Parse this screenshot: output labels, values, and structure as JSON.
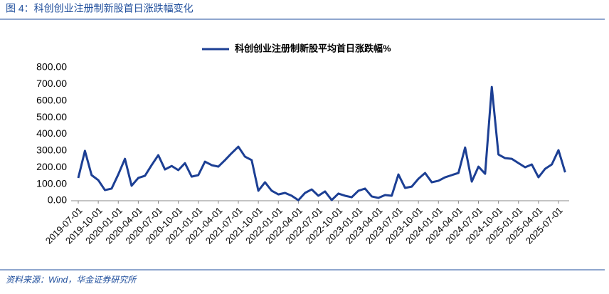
{
  "chart_data": {
    "type": "line",
    "title": "图 4：科创创业注册制新股首日涨跌幅变化",
    "source": "资料来源：Wind，华金证券研究所",
    "categories": [
      "2019-07-01",
      null,
      null,
      "2019-10-01",
      null,
      null,
      "2020-01-01",
      null,
      null,
      "2020-04-01",
      null,
      null,
      "2020-07-01",
      null,
      null,
      "2020-10-01",
      null,
      null,
      "2021-01-01",
      null,
      null,
      "2021-04-01",
      null,
      null,
      "2021-07-01",
      null,
      null,
      "2021-10-01",
      null,
      null,
      "2022-01-01",
      null,
      null,
      "2022-04-01",
      null,
      null,
      "2022-07-01",
      null,
      null,
      "2022-10-01",
      null,
      null,
      "2023-01-01",
      null,
      null,
      "2023-04-01",
      null,
      null,
      "2023-07-01",
      null,
      null,
      "2023-10-01",
      null,
      null,
      "2024-01-01",
      null,
      null,
      "2024-04-01",
      null,
      null,
      "2024-07-01",
      null,
      null,
      "2024-10-01",
      null,
      null,
      "2025-01-01",
      null,
      null,
      "2025-04-01",
      null,
      null,
      "2025-07-01",
      null
    ],
    "series": [
      {
        "name": "科创创业注册制新股平均首日涨跌幅%",
        "color": "#1c3f94",
        "values": [
          137,
          300,
          154,
          124,
          64,
          73,
          158,
          252,
          90,
          137,
          150,
          214,
          274,
          188,
          209,
          184,
          226,
          145,
          154,
          235,
          214,
          205,
          244,
          286,
          325,
          265,
          244,
          60,
          111,
          60,
          38,
          47,
          30,
          3,
          47,
          68,
          30,
          56,
          4,
          43,
          30,
          21,
          60,
          73,
          26,
          17,
          34,
          30,
          158,
          77,
          85,
          132,
          167,
          111,
          120,
          141,
          154,
          167,
          320,
          115,
          205,
          162,
          684,
          278,
          256,
          252,
          226,
          201,
          218,
          141,
          192,
          218,
          304,
          171
        ]
      }
    ],
    "ylim": [
      0,
      800
    ],
    "yticks": [
      {
        "value": 0,
        "label": "0.00"
      },
      {
        "value": 100,
        "label": "100.00"
      },
      {
        "value": 200,
        "label": "200.00"
      },
      {
        "value": 300,
        "label": "300.00"
      },
      {
        "value": 400,
        "label": "400.00"
      },
      {
        "value": 500,
        "label": "500.00"
      },
      {
        "value": 600,
        "label": "600.00"
      },
      {
        "value": 700,
        "label": "700.00"
      },
      {
        "value": 800,
        "label": "800.00"
      }
    ],
    "legend": "top"
  }
}
